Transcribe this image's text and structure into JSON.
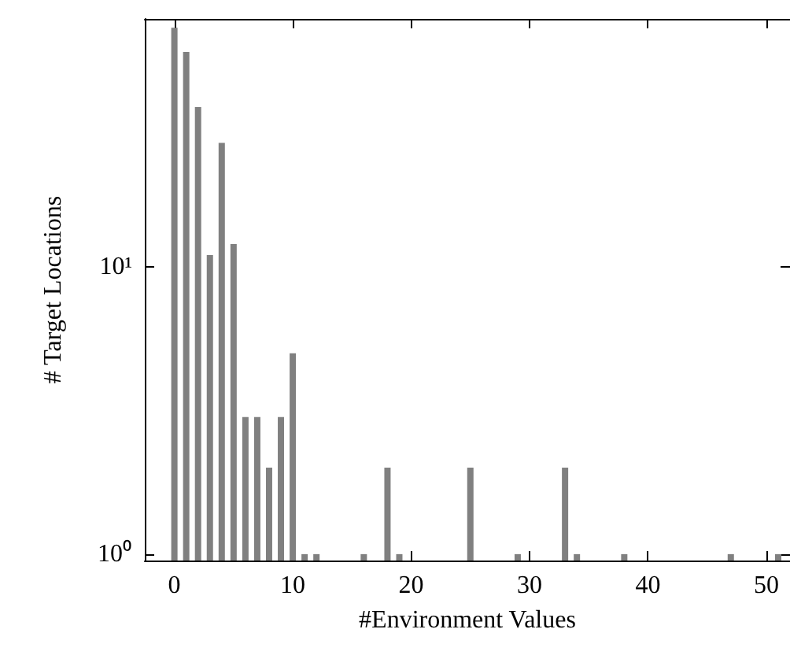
{
  "chart_data": {
    "type": "bar",
    "xlabel": "#Environment Values",
    "ylabel": "# Target Locations",
    "x": [
      0,
      1,
      2,
      3,
      4,
      5,
      6,
      7,
      8,
      9,
      10,
      11,
      12,
      16,
      18,
      19,
      25,
      29,
      33,
      34,
      38,
      47,
      51
    ],
    "values": [
      68,
      56,
      36,
      11,
      27,
      12,
      3,
      3,
      2,
      3,
      5,
      1,
      1,
      1,
      2,
      1,
      2,
      1,
      2,
      1,
      1,
      1,
      1
    ],
    "color": "#808080",
    "log": "y",
    "grid": false,
    "xlim": [
      -2.5,
      52
    ],
    "xticks": [
      0,
      10,
      20,
      30,
      40,
      50
    ],
    "ylim": [
      0.95,
      73
    ],
    "yticks": [
      {
        "value": 1,
        "label": "10⁰"
      },
      {
        "value": 10,
        "label": "10¹"
      }
    ]
  }
}
